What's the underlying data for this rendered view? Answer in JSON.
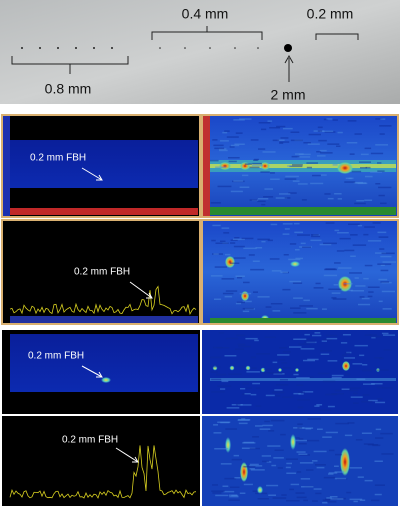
{
  "photo": {
    "labels": [
      "0.4 mm",
      "0.2 mm",
      "0.8 mm",
      "2 mm"
    ]
  },
  "panels": [
    {
      "annotation": "0.2 mm FBH"
    },
    {
      "annotation": "0.2 mm FBH"
    },
    {
      "annotation": "0.2 mm FBH"
    },
    {
      "annotation": "0.2 mm FBH"
    }
  ]
}
